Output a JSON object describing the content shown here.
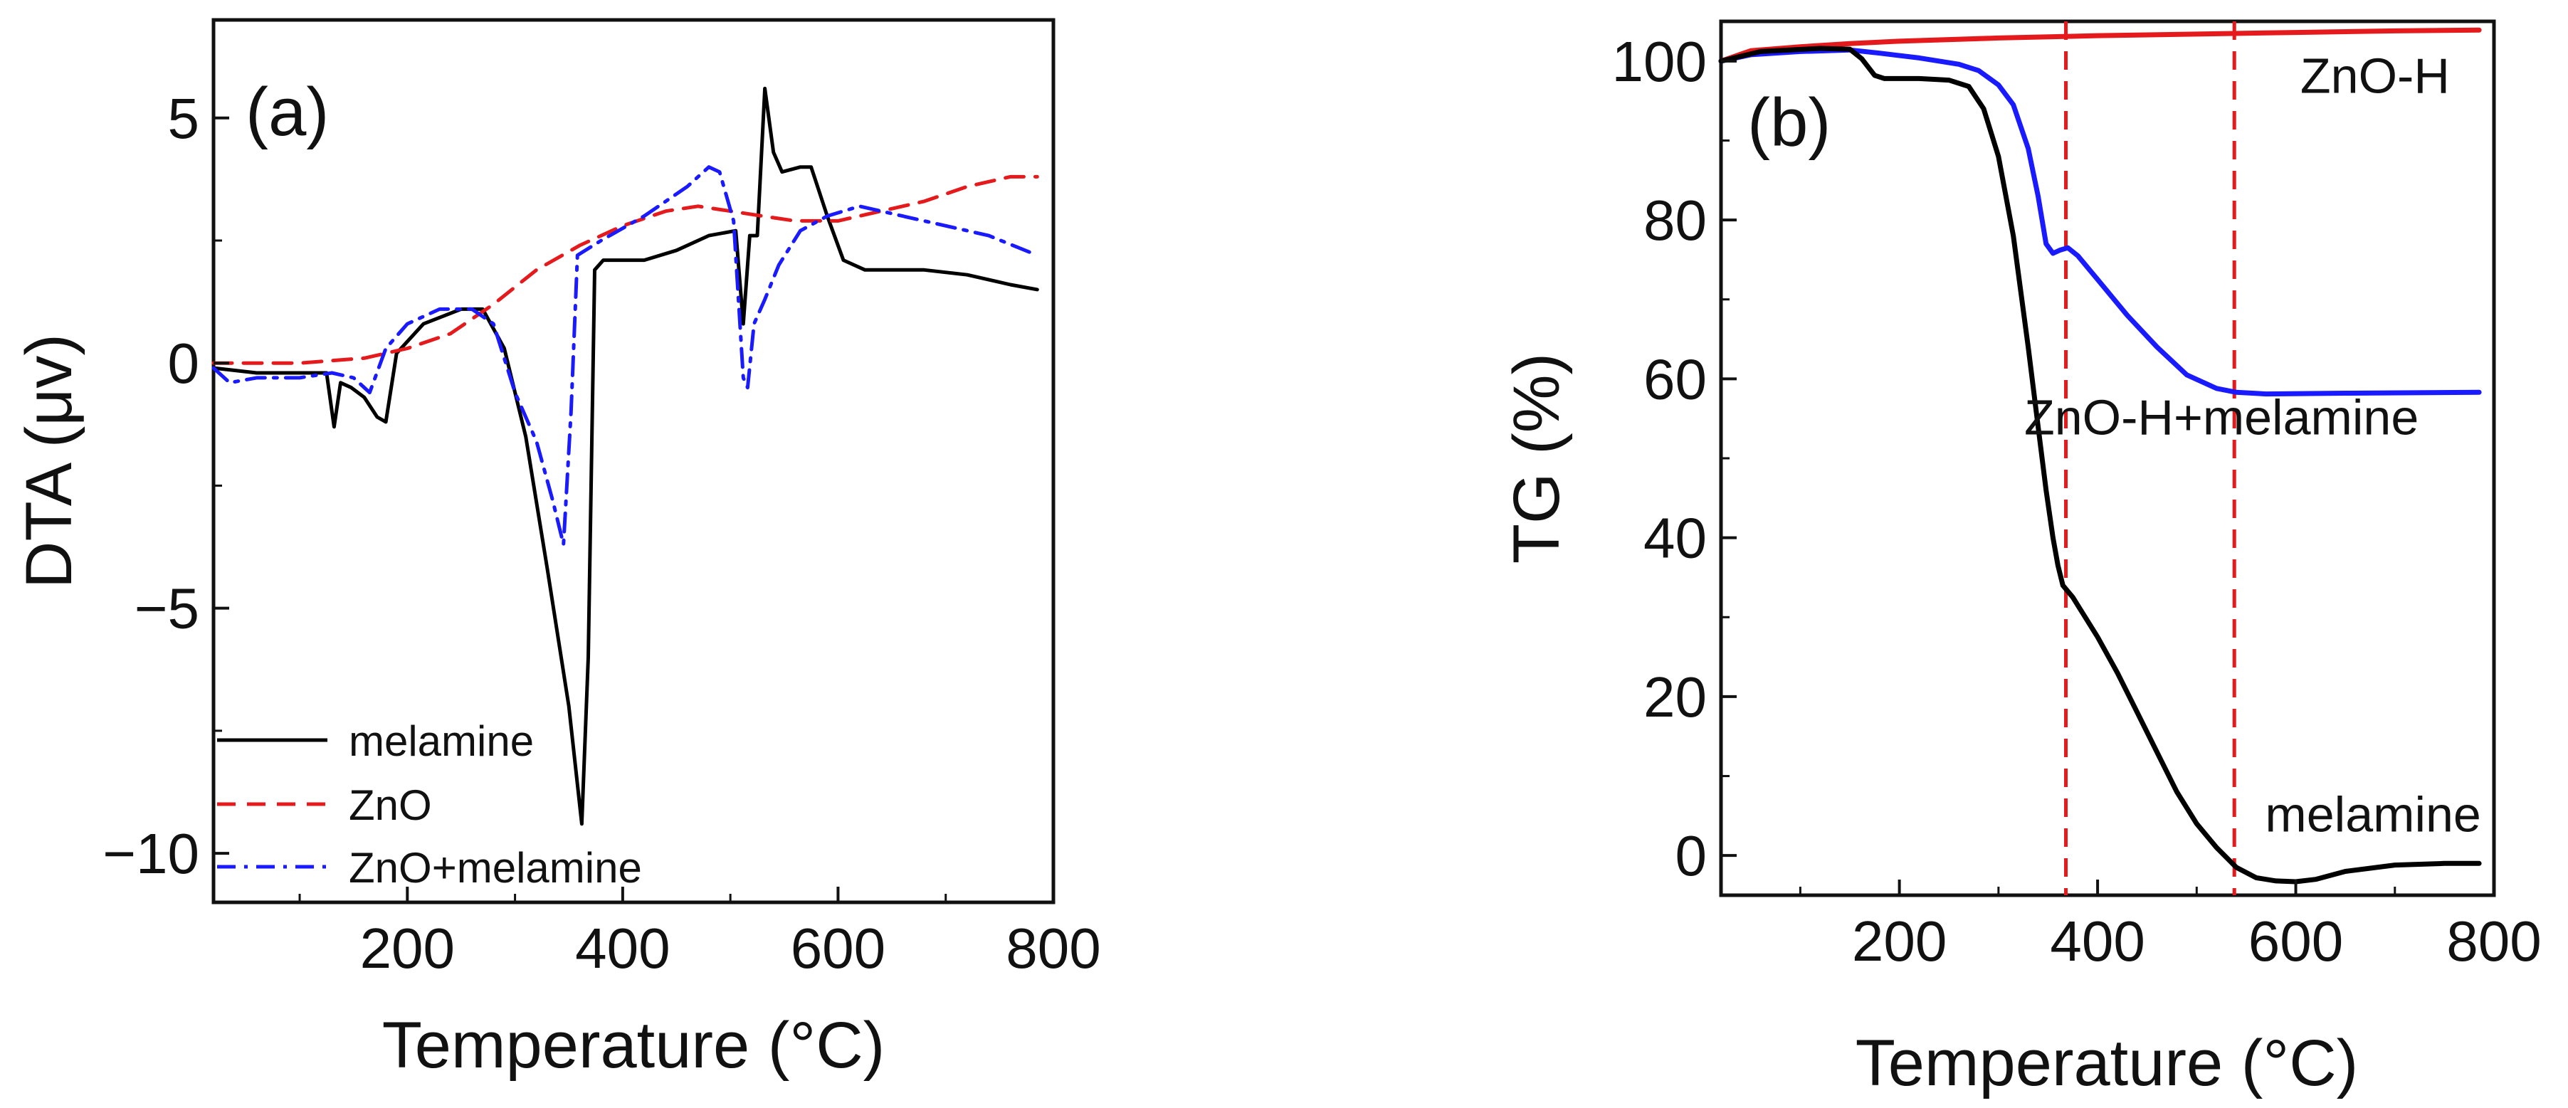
{
  "chart_data": [
    {
      "panel_label": "(a)",
      "type": "line",
      "xlabel": "Temperature (°C)",
      "ylabel": "DTA (μv)",
      "xlim": [
        20,
        800
      ],
      "ylim": [
        -11,
        7
      ],
      "xticks": [
        200,
        400,
        600,
        800
      ],
      "xtick_labels": [
        "200",
        "400",
        "600",
        "800"
      ],
      "yticks": [
        5,
        0,
        -5,
        -10
      ],
      "ytick_labels": [
        "5",
        "0",
        "−5",
        "−10"
      ],
      "legend_position": "bottom-left",
      "series": [
        {
          "name": "melamine",
          "color": "#000000",
          "dash": "solid",
          "points": [
            [
              20,
              -0.1
            ],
            [
              60,
              -0.2
            ],
            [
              100,
              -0.2
            ],
            [
              125,
              -0.2
            ],
            [
              132,
              -1.3
            ],
            [
              138,
              -0.4
            ],
            [
              148,
              -0.5
            ],
            [
              160,
              -0.7
            ],
            [
              172,
              -1.1
            ],
            [
              180,
              -1.2
            ],
            [
              190,
              0.2
            ],
            [
              215,
              0.8
            ],
            [
              250,
              1.1
            ],
            [
              270,
              1.1
            ],
            [
              290,
              0.3
            ],
            [
              310,
              -1.5
            ],
            [
              330,
              -4.2
            ],
            [
              350,
              -7.0
            ],
            [
              362,
              -9.4
            ],
            [
              368,
              -6.0
            ],
            [
              374,
              1.9
            ],
            [
              382,
              2.1
            ],
            [
              420,
              2.1
            ],
            [
              450,
              2.3
            ],
            [
              480,
              2.6
            ],
            [
              505,
              2.7
            ],
            [
              512,
              0.8
            ],
            [
              518,
              2.6
            ],
            [
              525,
              2.6
            ],
            [
              532,
              5.6
            ],
            [
              540,
              4.3
            ],
            [
              548,
              3.9
            ],
            [
              565,
              4.0
            ],
            [
              575,
              4.0
            ],
            [
              590,
              3.0
            ],
            [
              605,
              2.1
            ],
            [
              625,
              1.9
            ],
            [
              680,
              1.9
            ],
            [
              720,
              1.8
            ],
            [
              760,
              1.6
            ],
            [
              785,
              1.5
            ]
          ]
        },
        {
          "name": "ZnO",
          "color": "#e41a1c",
          "dash": "dashed",
          "points": [
            [
              20,
              0.0
            ],
            [
              100,
              0.0
            ],
            [
              160,
              0.1
            ],
            [
              200,
              0.3
            ],
            [
              240,
              0.6
            ],
            [
              280,
              1.2
            ],
            [
              320,
              1.9
            ],
            [
              360,
              2.4
            ],
            [
              400,
              2.8
            ],
            [
              440,
              3.1
            ],
            [
              470,
              3.2
            ],
            [
              500,
              3.1
            ],
            [
              530,
              3.0
            ],
            [
              560,
              2.9
            ],
            [
              600,
              2.9
            ],
            [
              640,
              3.1
            ],
            [
              680,
              3.3
            ],
            [
              720,
              3.6
            ],
            [
              760,
              3.8
            ],
            [
              785,
              3.8
            ]
          ]
        },
        {
          "name": "ZnO+melamine",
          "color": "#1a1aff",
          "dash": "dash-dot",
          "points": [
            [
              20,
              -0.1
            ],
            [
              35,
              -0.4
            ],
            [
              60,
              -0.3
            ],
            [
              100,
              -0.3
            ],
            [
              130,
              -0.2
            ],
            [
              150,
              -0.3
            ],
            [
              165,
              -0.6
            ],
            [
              180,
              0.3
            ],
            [
              200,
              0.8
            ],
            [
              230,
              1.1
            ],
            [
              260,
              1.1
            ],
            [
              280,
              0.8
            ],
            [
              300,
              -0.6
            ],
            [
              320,
              -1.6
            ],
            [
              335,
              -2.8
            ],
            [
              345,
              -3.7
            ],
            [
              352,
              -1.0
            ],
            [
              358,
              2.2
            ],
            [
              380,
              2.5
            ],
            [
              420,
              3.0
            ],
            [
              460,
              3.6
            ],
            [
              480,
              4.0
            ],
            [
              490,
              3.9
            ],
            [
              503,
              2.9
            ],
            [
              512,
              -0.3
            ],
            [
              516,
              -0.5
            ],
            [
              522,
              0.8
            ],
            [
              532,
              1.3
            ],
            [
              545,
              2.0
            ],
            [
              565,
              2.7
            ],
            [
              590,
              3.0
            ],
            [
              620,
              3.2
            ],
            [
              660,
              3.0
            ],
            [
              700,
              2.8
            ],
            [
              740,
              2.6
            ],
            [
              785,
              2.2
            ]
          ]
        }
      ]
    },
    {
      "panel_label": "(b)",
      "type": "line",
      "xlabel": "Temperature (°C)",
      "ylabel": "TG (%)",
      "xlim": [
        20,
        800
      ],
      "ylim": [
        -5,
        105
      ],
      "xticks": [
        200,
        400,
        600,
        800
      ],
      "xtick_labels": [
        "200",
        "400",
        "600",
        "800"
      ],
      "yticks": [
        0,
        20,
        40,
        60,
        80,
        100
      ],
      "ytick_labels": [
        "0",
        "20",
        "40",
        "60",
        "80",
        "100"
      ],
      "vlines": [
        368,
        538
      ],
      "vline_color": "#e41a1c",
      "annotations": [
        {
          "text": "ZnO-H",
          "x": 680,
          "y": 96
        },
        {
          "text": "ZnO-H+melamine",
          "x": 525,
          "y": 53
        },
        {
          "text": "melamine",
          "x": 678,
          "y": 3
        }
      ],
      "series": [
        {
          "name": "ZnO-H",
          "color": "#e41a1c",
          "dash": "solid",
          "points": [
            [
              20,
              100
            ],
            [
              50,
              101.3
            ],
            [
              100,
              101.8
            ],
            [
              150,
              102.2
            ],
            [
              200,
              102.5
            ],
            [
              300,
              102.9
            ],
            [
              400,
              103.2
            ],
            [
              500,
              103.4
            ],
            [
              600,
              103.6
            ],
            [
              700,
              103.8
            ],
            [
              785,
              103.9
            ]
          ]
        },
        {
          "name": "ZnO-H+melamine",
          "color": "#1a1aff",
          "dash": "solid",
          "points": [
            [
              20,
              100
            ],
            [
              50,
              100.8
            ],
            [
              100,
              101.2
            ],
            [
              150,
              101.4
            ],
            [
              180,
              101.0
            ],
            [
              220,
              100.4
            ],
            [
              260,
              99.6
            ],
            [
              280,
              98.8
            ],
            [
              300,
              97.0
            ],
            [
              315,
              94.5
            ],
            [
              330,
              89.0
            ],
            [
              340,
              83.0
            ],
            [
              348,
              77.0
            ],
            [
              355,
              75.8
            ],
            [
              362,
              76.2
            ],
            [
              370,
              76.5
            ],
            [
              380,
              75.5
            ],
            [
              400,
              72.5
            ],
            [
              430,
              68.0
            ],
            [
              460,
              64.0
            ],
            [
              490,
              60.5
            ],
            [
              520,
              58.8
            ],
            [
              540,
              58.3
            ],
            [
              570,
              58.1
            ],
            [
              650,
              58.2
            ],
            [
              785,
              58.3
            ]
          ]
        },
        {
          "name": "melamine",
          "color": "#000000",
          "dash": "solid",
          "points": [
            [
              20,
              100
            ],
            [
              60,
              101.2
            ],
            [
              120,
              101.6
            ],
            [
              150,
              101.5
            ],
            [
              162,
              100.3
            ],
            [
              175,
              98.2
            ],
            [
              185,
              97.8
            ],
            [
              220,
              97.8
            ],
            [
              250,
              97.6
            ],
            [
              270,
              96.8
            ],
            [
              285,
              94.0
            ],
            [
              300,
              88.0
            ],
            [
              315,
              78.0
            ],
            [
              330,
              64.0
            ],
            [
              340,
              54.0
            ],
            [
              348,
              46.0
            ],
            [
              355,
              40.0
            ],
            [
              360,
              36.5
            ],
            [
              365,
              34.0
            ],
            [
              375,
              32.5
            ],
            [
              385,
              30.5
            ],
            [
              400,
              27.5
            ],
            [
              420,
              23.0
            ],
            [
              440,
              18.0
            ],
            [
              460,
              13.0
            ],
            [
              480,
              8.0
            ],
            [
              500,
              4.0
            ],
            [
              520,
              1.0
            ],
            [
              540,
              -1.5
            ],
            [
              560,
              -2.8
            ],
            [
              580,
              -3.2
            ],
            [
              600,
              -3.3
            ],
            [
              620,
              -3.0
            ],
            [
              650,
              -2.0
            ],
            [
              700,
              -1.2
            ],
            [
              750,
              -1.0
            ],
            [
              785,
              -1.0
            ]
          ]
        }
      ]
    }
  ]
}
